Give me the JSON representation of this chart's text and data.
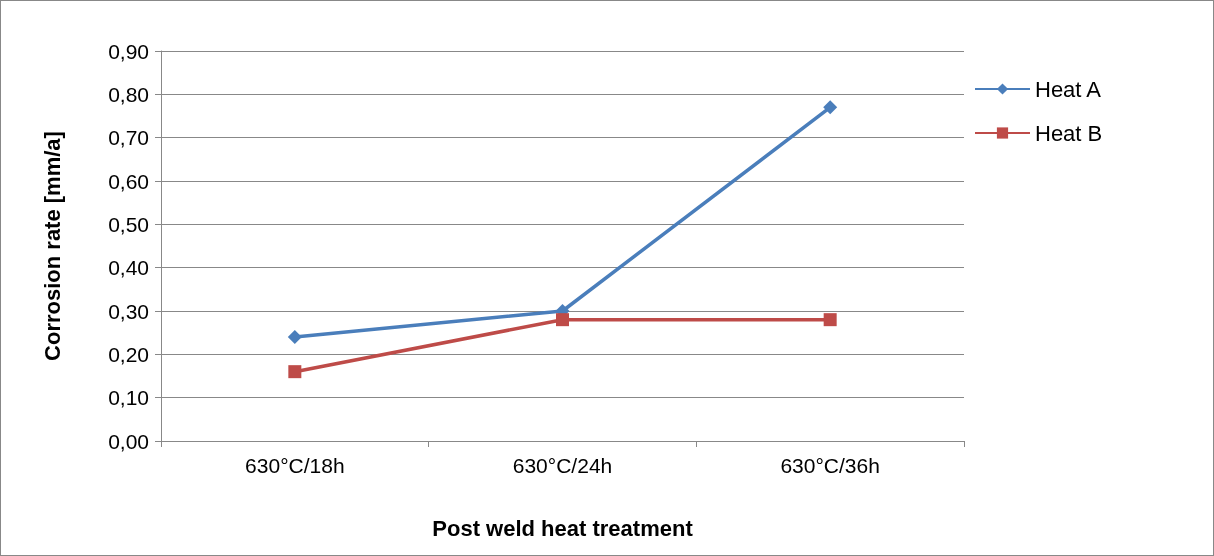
{
  "chart_data": {
    "type": "line",
    "xlabel": "Post weld heat treatment",
    "ylabel": "Corrosion rate [mm/a]",
    "categories": [
      "630°C/18h",
      "630°C/24h",
      "630°C/36h"
    ],
    "series": [
      {
        "name": "Heat A",
        "color": "#4a7ebb",
        "marker": "diamond",
        "values": [
          0.24,
          0.3,
          0.77
        ]
      },
      {
        "name": "Heat B",
        "color": "#be4b48",
        "marker": "square",
        "values": [
          0.16,
          0.28,
          0.28
        ]
      }
    ],
    "ylim": [
      0,
      0.9
    ],
    "yticks": [
      {
        "value": 0,
        "label": "0,00"
      },
      {
        "value": 0.1,
        "label": "0,10"
      },
      {
        "value": 0.2,
        "label": "0,20"
      },
      {
        "value": 0.3,
        "label": "0,30"
      },
      {
        "value": 0.4,
        "label": "0,40"
      },
      {
        "value": 0.5,
        "label": "0,50"
      },
      {
        "value": 0.6,
        "label": "0,60"
      },
      {
        "value": 0.7,
        "label": "0,70"
      },
      {
        "value": 0.8,
        "label": "0,80"
      },
      {
        "value": 0.9,
        "label": "0,90"
      }
    ],
    "grid": "y",
    "legend": "right",
    "line_style": "solid"
  }
}
